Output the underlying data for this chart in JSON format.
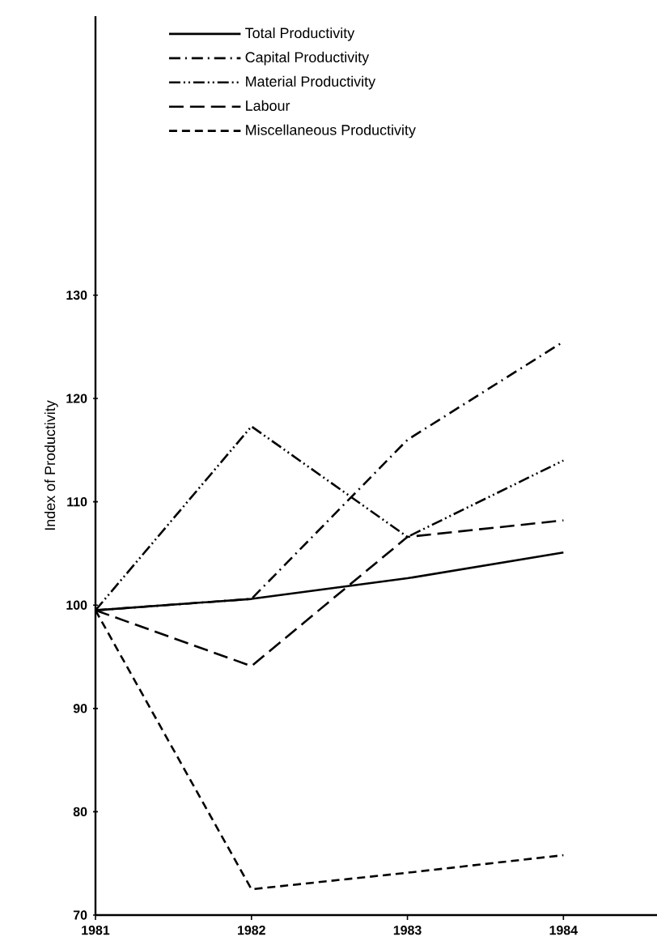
{
  "chart_data": {
    "type": "line",
    "ylabel": "Index of Productivity",
    "x": [
      1981,
      1982,
      1983,
      1984
    ],
    "xlim": [
      1981,
      1984.6
    ],
    "xticks": [
      1981,
      1982,
      1983,
      1984
    ],
    "ylim": [
      70,
      157
    ],
    "yticks": [
      70,
      80,
      90,
      100,
      110,
      120,
      130
    ],
    "legend": "top",
    "grid": false,
    "series": [
      {
        "name": "Total Productivity",
        "color": "#000000",
        "line_style": "solid",
        "values": [
          99.5,
          100.6,
          102.6,
          105.1
        ]
      },
      {
        "name": "Capital Productivity",
        "color": "#000000",
        "line_style": "dashdot",
        "values": [
          99.5,
          100.6,
          116,
          125.5
        ]
      },
      {
        "name": "Material Productivity",
        "color": "#000000",
        "line_style": "dashdotdot",
        "values": [
          99.5,
          117.3,
          106.6,
          114
        ]
      },
      {
        "name": "Labour",
        "color": "#000000",
        "line_style": "longdashed",
        "values": [
          99.5,
          94.1,
          106.6,
          108.2
        ]
      },
      {
        "name": "Miscellaneous Productivity",
        "color": "#000000",
        "line_style": "dashed",
        "values": [
          99.5,
          72.5,
          74.1,
          75.8
        ]
      }
    ]
  }
}
